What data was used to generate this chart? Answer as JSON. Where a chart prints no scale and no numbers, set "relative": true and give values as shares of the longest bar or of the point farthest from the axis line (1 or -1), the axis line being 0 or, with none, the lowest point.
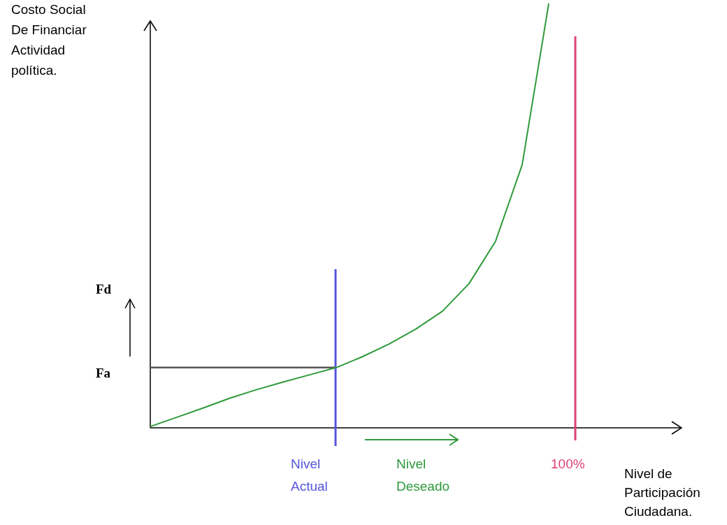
{
  "chart_data": {
    "type": "line",
    "relative": true,
    "xlabel": "Nivel de Participación Ciudadana.",
    "ylabel": "Costo Social De Financiar Actividad política.",
    "line_style": "solid",
    "categories": [
      null,
      null,
      null,
      null,
      null,
      null,
      null,
      null,
      null,
      null,
      null,
      null,
      null,
      null,
      null,
      null,
      null,
      null,
      null,
      null,
      null
    ],
    "series": [
      {
        "color": "#2e9a3a",
        "values": [
          0.003,
          0.025,
          0.047,
          0.07,
          0.09,
          0.108,
          0.125,
          0.142,
          0.168,
          0.198,
          0.233,
          0.275,
          0.34,
          0.44,
          0.62,
          1,
          null,
          null,
          null,
          null,
          null
        ]
      }
    ],
    "ref_lines": [
      {
        "axis": "y",
        "value": 0.142,
        "label": "Fa",
        "color": "#555555"
      }
    ],
    "annotations": [
      "Fd",
      "Nivel Actual",
      "Nivel Deseado",
      "100%"
    ]
  }
}
